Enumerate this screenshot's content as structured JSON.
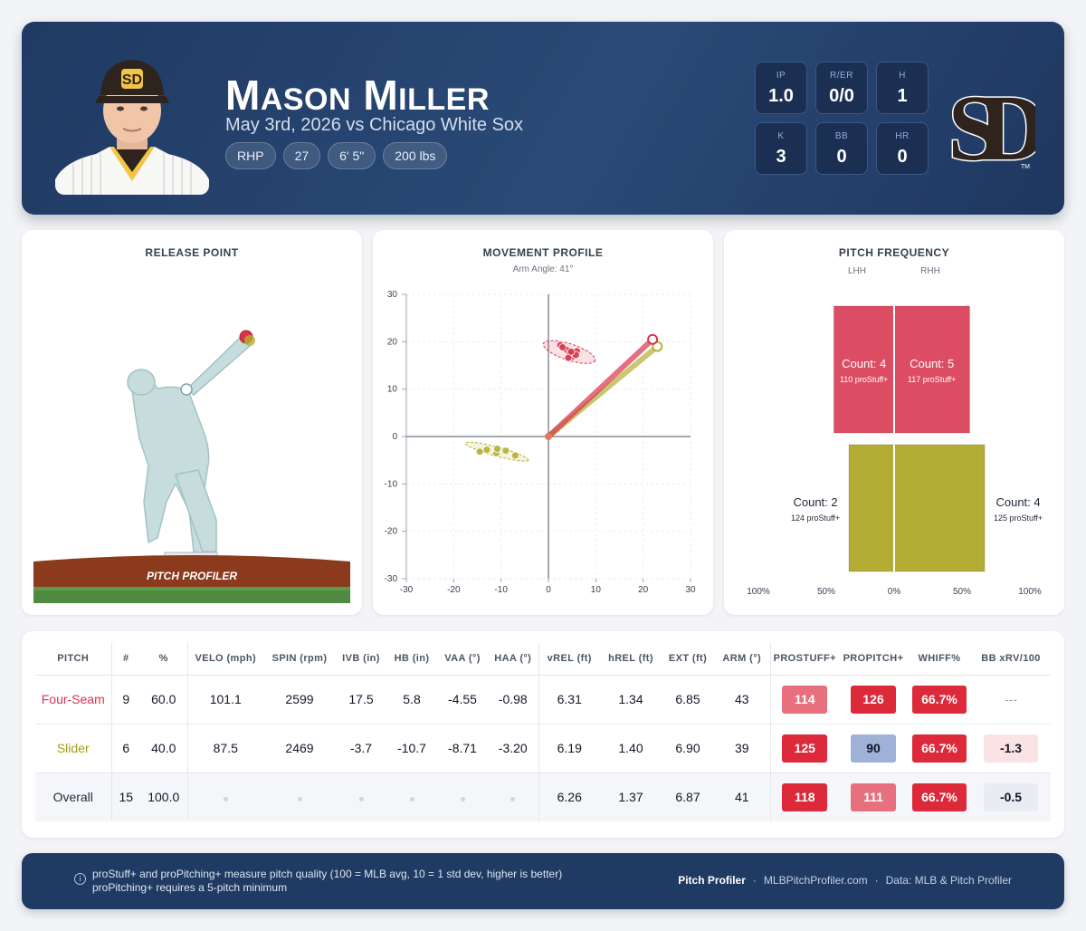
{
  "player": {
    "first_initial": "M",
    "first_rest": "ASON",
    "last_initial": "M",
    "last_rest": "ILLER",
    "subtitle": "May 3rd, 2026 vs Chicago White Sox",
    "tags": [
      "RHP",
      "27",
      "6' 5\"",
      "200 lbs"
    ]
  },
  "stats": [
    {
      "label": "IP",
      "value": "1.0"
    },
    {
      "label": "R/ER",
      "value": "0/0"
    },
    {
      "label": "H",
      "value": "1"
    },
    {
      "label": "K",
      "value": "3"
    },
    {
      "label": "BB",
      "value": "0"
    },
    {
      "label": "HR",
      "value": "0"
    }
  ],
  "team_logo": {
    "text": "SD",
    "mark": "TM",
    "color": "#2f241d"
  },
  "release_point": {
    "title": "RELEASE POINT",
    "brand": "PITCH PROFILER"
  },
  "movement": {
    "title": "MOVEMENT PROFILE",
    "subtitle": "Arm Angle: 41°"
  },
  "frequency": {
    "title": "PITCH FREQUENCY",
    "lhh": "LHH",
    "rhh": "RHH"
  },
  "chart_data": [
    {
      "type": "scatter",
      "title": "MOVEMENT PROFILE",
      "subtitle": "Arm Angle: 41°",
      "xlim": [
        -30,
        30
      ],
      "ylim": [
        -30,
        30
      ],
      "x_ticks": [
        -30,
        -20,
        -10,
        0,
        10,
        20,
        30
      ],
      "y_ticks": [
        30,
        20,
        10,
        0,
        -10,
        -20,
        -30
      ],
      "grid": true,
      "series": [
        {
          "name": "Four-Seam",
          "color": "#d9344b",
          "points": [
            [
              2.5,
              19.3
            ],
            [
              3.8,
              18.3
            ],
            [
              5.0,
              16.8
            ],
            [
              4.5,
              17.6
            ],
            [
              6.0,
              18.0
            ],
            [
              4.2,
              16.6
            ],
            [
              5.8,
              17.2
            ],
            [
              3.0,
              18.8
            ],
            [
              4.8,
              17.9
            ]
          ],
          "arm_vector": [
            22,
            20.5
          ]
        },
        {
          "name": "Slider",
          "color": "#b5b032",
          "points": [
            [
              -14.5,
              -3.2
            ],
            [
              -13.0,
              -2.8
            ],
            [
              -11.0,
              -3.5
            ],
            [
              -10.8,
              -2.6
            ],
            [
              -9.0,
              -3.0
            ],
            [
              -7.0,
              -4.0
            ]
          ],
          "arm_vector": [
            23,
            19
          ]
        }
      ]
    },
    {
      "type": "bar",
      "title": "PITCH FREQUENCY",
      "categories": [
        "LHH",
        "RHH"
      ],
      "x_ticks": [
        "100%",
        "50%",
        "0%",
        "50%",
        "100%"
      ],
      "series": [
        {
          "name": "Four-Seam",
          "color": "#dc4d63",
          "lhh_pct": 44.4,
          "rhh_pct": 55.6,
          "lhh_label": "Count: 4",
          "lhh_sub": "110 proStuff+",
          "rhh_label": "Count: 5",
          "rhh_sub": "117 proStuff+"
        },
        {
          "name": "Slider",
          "color": "#b3ac35",
          "lhh_pct": 33.3,
          "rhh_pct": 66.7,
          "lhh_label": "Count: 2",
          "lhh_sub": "124 proStuff+",
          "rhh_label": "Count: 4",
          "rhh_sub": "125 proStuff+"
        }
      ]
    }
  ],
  "table": {
    "headers": [
      "PITCH",
      "#",
      "%",
      "VELO (mph)",
      "SPIN (rpm)",
      "IVB (in)",
      "HB (in)",
      "VAA (°)",
      "HAA (°)",
      "vREL (ft)",
      "hREL (ft)",
      "EXT (ft)",
      "ARM (°)",
      "PROSTUFF+",
      "PROPITCH+",
      "WHIFF%",
      "BB xRV/100"
    ],
    "rows": [
      {
        "pitch": "Four-Seam",
        "color": "#d9344b",
        "n": "9",
        "pct": "60.0",
        "velo": "101.1",
        "spin": "2599",
        "ivb": "17.5",
        "hb": "5.8",
        "vaa": "-4.55",
        "haa": "-0.98",
        "vrel": "6.31",
        "hrel": "1.34",
        "ext": "6.85",
        "arm": "43",
        "stuff": "114",
        "stuff_bg": "#e8707e",
        "pitching": "126",
        "pitching_bg": "#dc2a3b",
        "whiff": "66.7%",
        "whiff_bg": "#dc2a3b",
        "xrv": "---",
        "xrv_bg": ""
      },
      {
        "pitch": "Slider",
        "color": "#a39c1c",
        "n": "6",
        "pct": "40.0",
        "velo": "87.5",
        "spin": "2469",
        "ivb": "-3.7",
        "hb": "-10.7",
        "vaa": "-8.71",
        "haa": "-3.20",
        "vrel": "6.19",
        "hrel": "1.40",
        "ext": "6.90",
        "arm": "39",
        "stuff": "125",
        "stuff_bg": "#dc2a3b",
        "pitching": "90",
        "pitching_bg": "#9fb1d6",
        "whiff": "66.7%",
        "whiff_bg": "#dc2a3b",
        "xrv": "-1.3",
        "xrv_bg": "#fbe3e5"
      },
      {
        "pitch": "Overall",
        "color": "#1f2937",
        "n": "15",
        "pct": "100.0",
        "velo": "",
        "spin": "",
        "ivb": "",
        "hb": "",
        "vaa": "",
        "haa": "",
        "vrel": "6.26",
        "hrel": "1.37",
        "ext": "6.87",
        "arm": "41",
        "stuff": "118",
        "stuff_bg": "#dc2a3b",
        "pitching": "111",
        "pitching_bg": "#e8707e",
        "whiff": "66.7%",
        "whiff_bg": "#dc2a3b",
        "xrv": "-0.5",
        "xrv_bg": "#e9edf3"
      }
    ]
  },
  "footer": {
    "info_icon": "info-icon",
    "line1": "proStuff+ and proPitching+ measure pitch quality (100 = MLB avg, 10 = 1 std dev, higher is better)",
    "line2": "proPitching+ requires a 5-pitch minimum",
    "brand": "Pitch Profiler",
    "sep1": "·",
    "site": "MLBPitchProfiler.com",
    "sep2": "·",
    "source": "Data: MLB & Pitch Profiler"
  }
}
